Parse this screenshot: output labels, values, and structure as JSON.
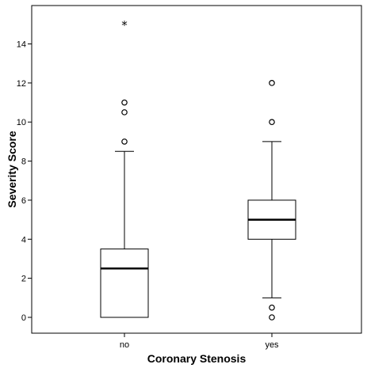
{
  "chart_data": {
    "type": "boxplot",
    "title": "",
    "xlabel": "Coronary Stenosis",
    "ylabel": "Severity Score",
    "categories": [
      "no",
      "yes"
    ],
    "ylim": [
      -1,
      15.6
    ],
    "yticks": [
      0,
      2,
      4,
      6,
      8,
      10,
      12,
      14
    ],
    "grid": false,
    "boxes": [
      {
        "category": "no",
        "whisker_low": 0,
        "q1": 0,
        "median": 2.5,
        "q3": 3.5,
        "whisker_high": 8.5,
        "outliers": [
          9,
          10.5,
          11
        ],
        "extremes": [
          15
        ]
      },
      {
        "category": "yes",
        "whisker_low": 1,
        "q1": 4,
        "median": 5,
        "q3": 6,
        "whisker_high": 9,
        "outliers": [
          0,
          0.5,
          10,
          12
        ],
        "extremes": []
      }
    ]
  }
}
